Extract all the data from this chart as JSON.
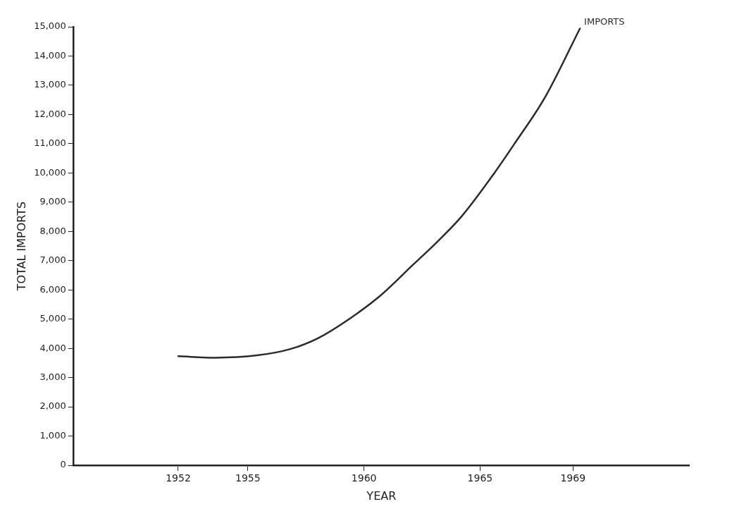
{
  "chart_data": {
    "type": "line",
    "xlabel": "YEAR",
    "ylabel": "TOTAL IMPORTS",
    "x": [
      1952.0,
      1953.6,
      1955.4,
      1956.8,
      1958.0,
      1959.3,
      1960.7,
      1962.1,
      1963.2,
      1964.2,
      1965.6,
      1966.5,
      1967.8,
      1969.3
    ],
    "series": [
      {
        "name": "IMPORTS",
        "color": "#2b2b2b",
        "values": [
          3730,
          3680,
          3760,
          3970,
          4340,
          4970,
          5800,
          6850,
          7680,
          8510,
          9980,
          11020,
          12590,
          14940
        ]
      }
    ],
    "xlim": [
      1947.5,
      1974
    ],
    "xticks": [
      1952,
      1955,
      1960,
      1965,
      1969
    ],
    "ylim": [
      0,
      15000
    ],
    "yticks": [
      {
        "value": 0,
        "label": "0"
      },
      {
        "value": 1000,
        "label": "1,000"
      },
      {
        "value": 2000,
        "label": "2,000"
      },
      {
        "value": 3000,
        "label": "3,000"
      },
      {
        "value": 4000,
        "label": "4,000"
      },
      {
        "value": 5000,
        "label": "5,000"
      },
      {
        "value": 6000,
        "label": "6,000"
      },
      {
        "value": 7000,
        "label": "7,000"
      },
      {
        "value": 8000,
        "label": "8,000"
      },
      {
        "value": 9000,
        "label": "9,000"
      },
      {
        "value": 10000,
        "label": "10,000"
      },
      {
        "value": 11000,
        "label": "11,000"
      },
      {
        "value": 12000,
        "label": "12,000"
      },
      {
        "value": 13000,
        "label": "13,000"
      },
      {
        "value": 14000,
        "label": "14,000"
      },
      {
        "value": 15000,
        "label": "15,000"
      }
    ],
    "grid": false,
    "legend": false,
    "marker": "none",
    "line_style": "solid"
  }
}
